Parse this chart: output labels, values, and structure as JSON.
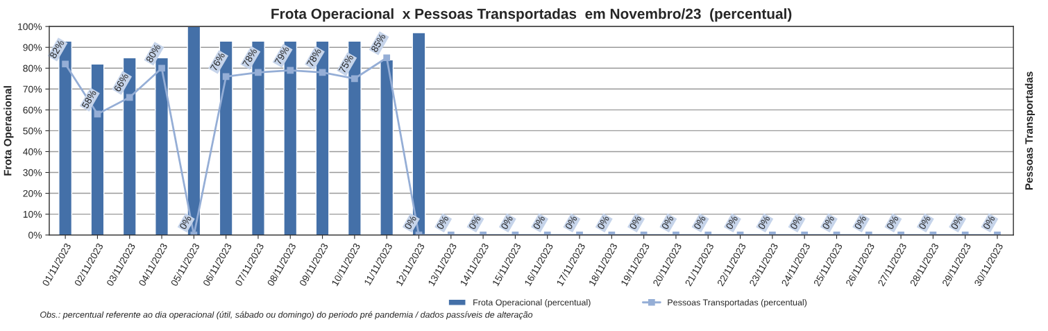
{
  "chart_data": {
    "type": "bar",
    "title": "Frota Operacional  x Pessoas Transportadas  em Novembro/23  (percentual)",
    "ylabel": "Frota Operacional",
    "y2label": "Pessoas Transportadas",
    "categories": [
      "01/11/2023",
      "02/11/2023",
      "03/11/2023",
      "04/11/2023",
      "05/11/2023",
      "06/11/2023",
      "07/11/2023",
      "08/11/2023",
      "09/11/2023",
      "10/11/2023",
      "11/11/2023",
      "12/11/2023",
      "13/11/2023",
      "14/11/2023",
      "15/11/2023",
      "16/11/2023",
      "17/11/2023",
      "18/11/2023",
      "19/11/2023",
      "20/11/2023",
      "21/11/2023",
      "22/11/2023",
      "23/11/2023",
      "24/11/2023",
      "25/11/2023",
      "26/11/2023",
      "27/11/2023",
      "28/11/2023",
      "29/11/2023",
      "30/11/2023"
    ],
    "series": [
      {
        "name": "Frota Operacional (percentual)",
        "color": "#4470a8",
        "values": [
          93,
          82,
          85,
          85,
          100,
          93,
          93,
          93,
          93,
          93,
          84,
          97,
          null,
          null,
          null,
          null,
          null,
          null,
          null,
          null,
          null,
          null,
          null,
          null,
          null,
          null,
          null,
          null,
          null,
          null
        ]
      },
      {
        "name": "Pessoas Transportadas (percentual)",
        "type": "line",
        "color": "#95aed6",
        "marker": "square",
        "values": [
          82,
          58,
          66,
          80,
          0,
          76,
          78,
          79,
          78,
          75,
          85,
          0,
          0,
          0,
          0,
          0,
          0,
          0,
          0,
          0,
          0,
          0,
          0,
          0,
          0,
          0,
          0,
          0,
          0,
          0
        ],
        "value_labels": [
          "82%",
          "58%",
          "66%",
          "80%",
          "0%",
          "76%",
          "78%",
          "79%",
          "78%",
          "75%",
          "85%",
          "0%",
          "0%",
          "0%",
          "0%",
          "0%",
          "0%",
          "0%",
          "0%",
          "0%",
          "0%",
          "0%",
          "0%",
          "0%",
          "0%",
          "0%",
          "0%",
          "0%",
          "0%",
          "0%"
        ]
      }
    ],
    "ylim": [
      0,
      100
    ],
    "yticks": [
      {
        "value": 0,
        "label": "0%"
      },
      {
        "value": 10,
        "label": "10%"
      },
      {
        "value": 20,
        "label": "20%"
      },
      {
        "value": 30,
        "label": "30%"
      },
      {
        "value": 40,
        "label": "40%"
      },
      {
        "value": 50,
        "label": "50%"
      },
      {
        "value": 60,
        "label": "60%"
      },
      {
        "value": 70,
        "label": "70%"
      },
      {
        "value": 80,
        "label": "80%"
      },
      {
        "value": 90,
        "label": "90%"
      },
      {
        "value": 100,
        "label": "100%"
      }
    ],
    "grid": "y",
    "legend": "bottom",
    "annotations": [
      "Obs.: percentual referente ao dia operacional (útil, sábado ou domingo) do periodo pré pandemia / dados passíveis de alteração"
    ]
  }
}
